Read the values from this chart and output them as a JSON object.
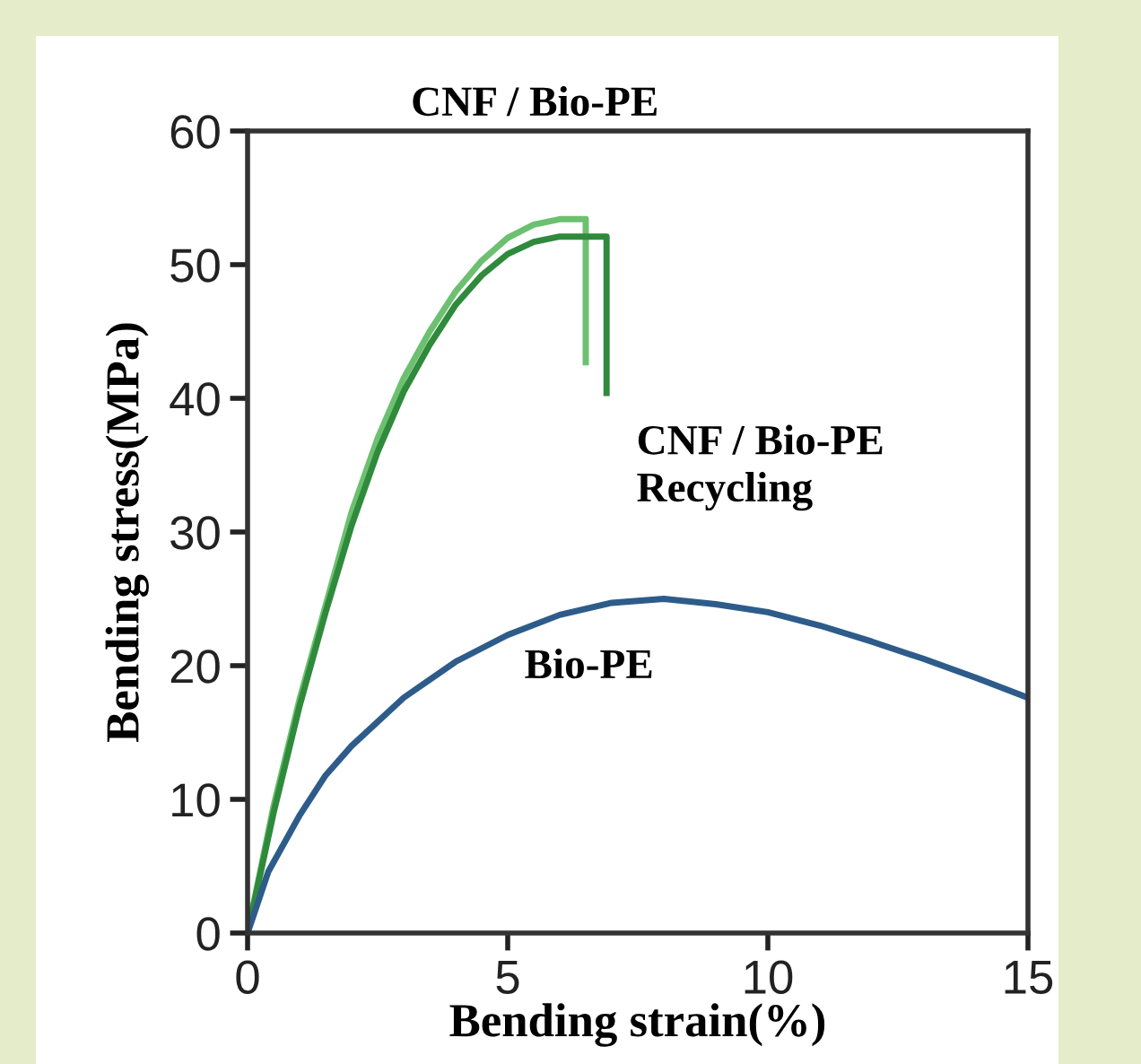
{
  "chart_data": {
    "type": "line",
    "xlabel": "Bending strain(%)",
    "ylabel": "Bending stress(MPa)",
    "xlim": [
      0,
      15
    ],
    "ylim": [
      0,
      60
    ],
    "xticks": [
      0,
      5,
      10,
      15
    ],
    "yticks": [
      0,
      10,
      20,
      30,
      40,
      50,
      60
    ],
    "grid": false,
    "legend": false,
    "marker": "none",
    "line_style": "solid",
    "series": [
      {
        "name": "CNF / Bio-PE",
        "color": "#6cc070",
        "x": [
          0,
          0.5,
          1,
          1.5,
          2,
          2.5,
          3,
          3.5,
          4,
          4.5,
          5,
          5.5,
          6,
          6.5,
          6.5
        ],
        "values": [
          0,
          9.5,
          17.5,
          24.5,
          31.5,
          37,
          41.5,
          45,
          48,
          50.3,
          52,
          53,
          53.4,
          53.4,
          42.7
        ]
      },
      {
        "name": "CNF / Bio-PE\nRecycling",
        "color": "#2f8a3c",
        "x": [
          0,
          0.5,
          1,
          1.5,
          2,
          2.5,
          3,
          3.5,
          4,
          4.5,
          5,
          5.5,
          6,
          6.9,
          6.9
        ],
        "values": [
          0,
          9,
          17,
          24,
          30.5,
          36,
          40.5,
          44,
          47,
          49.2,
          50.8,
          51.7,
          52.1,
          52.1,
          40.4
        ]
      },
      {
        "name": "Bio-PE",
        "color": "#2e5c8a",
        "x": [
          0,
          0.4,
          1,
          1.5,
          2,
          3,
          4,
          5,
          6,
          7,
          8,
          9,
          10,
          11,
          12,
          13,
          14,
          15
        ],
        "values": [
          0,
          4.6,
          8.8,
          11.8,
          14,
          17.6,
          20.3,
          22.3,
          23.8,
          24.7,
          25,
          24.6,
          24,
          23,
          21.8,
          20.5,
          19.1,
          17.6
        ]
      }
    ]
  }
}
